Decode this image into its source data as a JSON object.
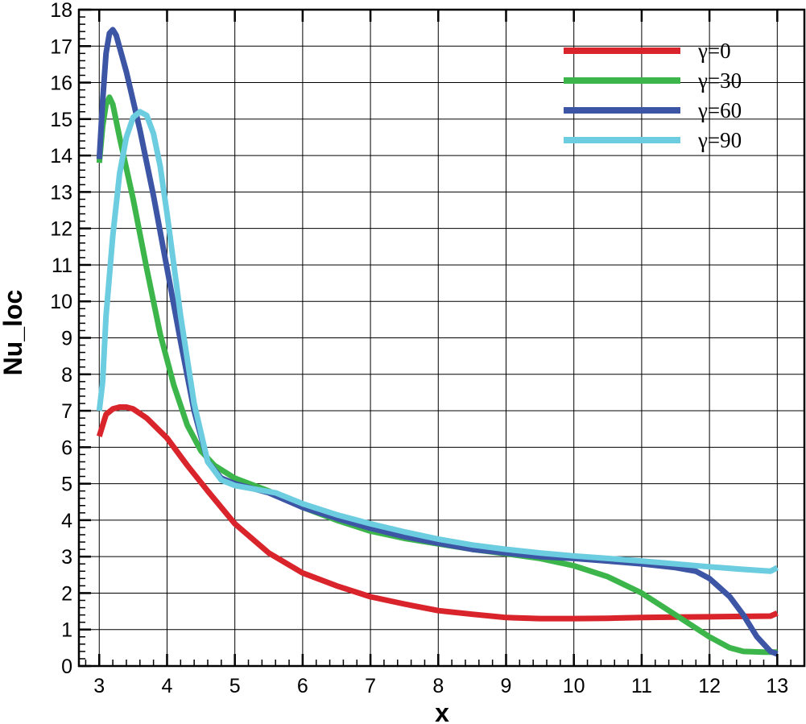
{
  "chart_data": {
    "type": "line",
    "title": "",
    "xlabel": "x",
    "ylabel": "Nu_loc",
    "xlim": [
      2.7,
      13.4
    ],
    "ylim": [
      0,
      18
    ],
    "x_ticks": [
      "3",
      "4",
      "5",
      "6",
      "7",
      "8",
      "9",
      "10",
      "11",
      "12",
      "13"
    ],
    "y_ticks": [
      "0",
      "1",
      "2",
      "3",
      "4",
      "5",
      "6",
      "7",
      "8",
      "9",
      "10",
      "11",
      "12",
      "13",
      "14",
      "15",
      "16",
      "17",
      "18"
    ],
    "grid": true,
    "legend_position": "top-right",
    "series": [
      {
        "name": "γ=0",
        "color": "#d9242b",
        "points": [
          [
            3.0,
            6.3
          ],
          [
            3.1,
            6.9
          ],
          [
            3.2,
            7.05
          ],
          [
            3.3,
            7.1
          ],
          [
            3.4,
            7.1
          ],
          [
            3.5,
            7.05
          ],
          [
            3.7,
            6.8
          ],
          [
            4.0,
            6.25
          ],
          [
            4.3,
            5.5
          ],
          [
            4.6,
            4.8
          ],
          [
            5.0,
            3.9
          ],
          [
            5.5,
            3.1
          ],
          [
            6.0,
            2.55
          ],
          [
            6.5,
            2.2
          ],
          [
            7.0,
            1.9
          ],
          [
            7.5,
            1.7
          ],
          [
            8.0,
            1.52
          ],
          [
            8.5,
            1.42
          ],
          [
            9.0,
            1.33
          ],
          [
            9.5,
            1.3
          ],
          [
            10.0,
            1.3
          ],
          [
            10.5,
            1.31
          ],
          [
            11.0,
            1.33
          ],
          [
            11.5,
            1.34
          ],
          [
            12.0,
            1.35
          ],
          [
            12.5,
            1.36
          ],
          [
            12.9,
            1.37
          ],
          [
            13.0,
            1.45
          ]
        ]
      },
      {
        "name": "γ=30",
        "color": "#3cb54a",
        "points": [
          [
            3.0,
            13.8
          ],
          [
            3.05,
            14.8
          ],
          [
            3.1,
            15.4
          ],
          [
            3.15,
            15.6
          ],
          [
            3.2,
            15.4
          ],
          [
            3.3,
            14.5
          ],
          [
            3.5,
            12.8
          ],
          [
            3.7,
            10.9
          ],
          [
            3.9,
            9.1
          ],
          [
            4.1,
            7.7
          ],
          [
            4.3,
            6.6
          ],
          [
            4.5,
            5.9
          ],
          [
            4.7,
            5.5
          ],
          [
            5.0,
            5.15
          ],
          [
            5.5,
            4.8
          ],
          [
            6.0,
            4.35
          ],
          [
            6.5,
            4.0
          ],
          [
            7.0,
            3.7
          ],
          [
            7.5,
            3.5
          ],
          [
            8.0,
            3.35
          ],
          [
            8.5,
            3.2
          ],
          [
            9.0,
            3.08
          ],
          [
            9.5,
            2.95
          ],
          [
            10.0,
            2.75
          ],
          [
            10.5,
            2.45
          ],
          [
            11.0,
            2.0
          ],
          [
            11.5,
            1.4
          ],
          [
            12.0,
            0.8
          ],
          [
            12.3,
            0.5
          ],
          [
            12.5,
            0.4
          ],
          [
            12.8,
            0.38
          ],
          [
            13.0,
            0.38
          ]
        ]
      },
      {
        "name": "γ=60",
        "color": "#3d55a5",
        "points": [
          [
            3.0,
            13.9
          ],
          [
            3.05,
            15.5
          ],
          [
            3.1,
            16.8
          ],
          [
            3.15,
            17.35
          ],
          [
            3.2,
            17.45
          ],
          [
            3.25,
            17.3
          ],
          [
            3.4,
            16.3
          ],
          [
            3.6,
            14.7
          ],
          [
            3.8,
            12.9
          ],
          [
            4.0,
            10.9
          ],
          [
            4.2,
            8.9
          ],
          [
            4.4,
            7.0
          ],
          [
            4.6,
            5.6
          ],
          [
            4.8,
            5.15
          ],
          [
            5.0,
            5.0
          ],
          [
            5.5,
            4.75
          ],
          [
            6.0,
            4.35
          ],
          [
            6.5,
            4.05
          ],
          [
            7.0,
            3.78
          ],
          [
            7.5,
            3.55
          ],
          [
            8.0,
            3.37
          ],
          [
            8.5,
            3.2
          ],
          [
            9.0,
            3.1
          ],
          [
            9.5,
            3.0
          ],
          [
            10.0,
            2.95
          ],
          [
            10.5,
            2.88
          ],
          [
            11.0,
            2.8
          ],
          [
            11.5,
            2.7
          ],
          [
            11.8,
            2.6
          ],
          [
            12.0,
            2.4
          ],
          [
            12.3,
            1.9
          ],
          [
            12.5,
            1.4
          ],
          [
            12.7,
            0.8
          ],
          [
            12.9,
            0.4
          ],
          [
            13.0,
            0.33
          ]
        ]
      },
      {
        "name": "γ=90",
        "color": "#6ccde0",
        "points": [
          [
            3.0,
            7.0
          ],
          [
            3.05,
            7.8
          ],
          [
            3.1,
            9.6
          ],
          [
            3.2,
            11.8
          ],
          [
            3.3,
            13.5
          ],
          [
            3.4,
            14.5
          ],
          [
            3.5,
            15.05
          ],
          [
            3.6,
            15.2
          ],
          [
            3.7,
            15.1
          ],
          [
            3.8,
            14.6
          ],
          [
            3.9,
            13.7
          ],
          [
            4.0,
            12.4
          ],
          [
            4.2,
            9.6
          ],
          [
            4.4,
            7.2
          ],
          [
            4.6,
            5.6
          ],
          [
            4.8,
            5.1
          ],
          [
            5.0,
            4.95
          ],
          [
            5.3,
            4.85
          ],
          [
            5.6,
            4.75
          ],
          [
            6.0,
            4.45
          ],
          [
            6.5,
            4.15
          ],
          [
            7.0,
            3.9
          ],
          [
            7.5,
            3.68
          ],
          [
            8.0,
            3.48
          ],
          [
            8.5,
            3.32
          ],
          [
            9.0,
            3.2
          ],
          [
            9.5,
            3.1
          ],
          [
            10.0,
            3.02
          ],
          [
            10.5,
            2.95
          ],
          [
            11.0,
            2.88
          ],
          [
            11.5,
            2.8
          ],
          [
            12.0,
            2.72
          ],
          [
            12.5,
            2.65
          ],
          [
            12.9,
            2.6
          ],
          [
            13.0,
            2.7
          ]
        ]
      }
    ]
  }
}
